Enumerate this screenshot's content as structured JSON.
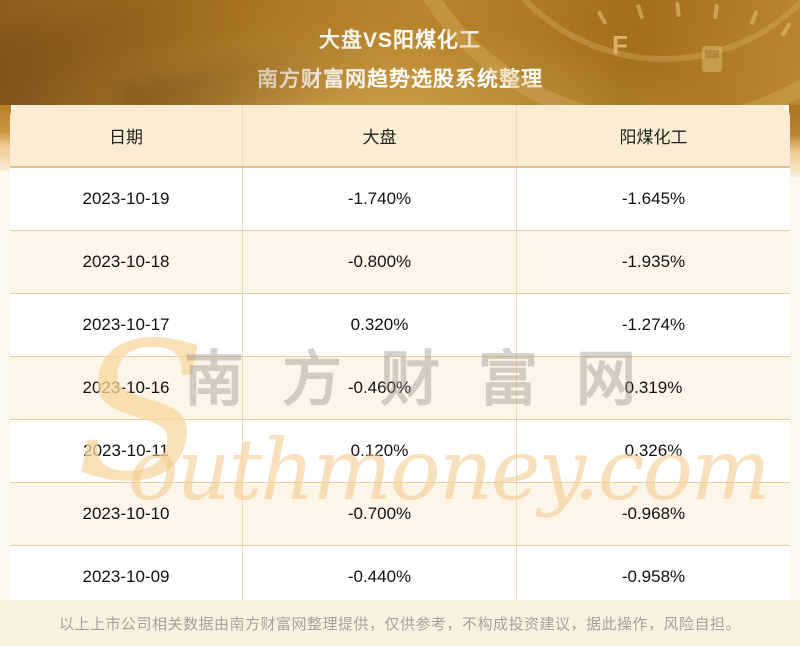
{
  "header": {
    "title": "大盘VS阳煤化工",
    "subtitle": "南方财富网趋势选股系统整理"
  },
  "background_photo": {
    "gauge_label": "F"
  },
  "table": {
    "columns": [
      "日期",
      "大盘",
      "阳煤化工"
    ],
    "rows": [
      {
        "date": "2023-10-19",
        "market": "-1.740%",
        "stock": "-1.645%"
      },
      {
        "date": "2023-10-18",
        "market": "-0.800%",
        "stock": "-1.935%"
      },
      {
        "date": "2023-10-17",
        "market": "0.320%",
        "stock": "-1.274%"
      },
      {
        "date": "2023-10-16",
        "market": "-0.460%",
        "stock": "0.319%"
      },
      {
        "date": "2023-10-11",
        "market": "0.120%",
        "stock": "0.326%"
      },
      {
        "date": "2023-10-10",
        "market": "-0.700%",
        "stock": "-0.968%"
      },
      {
        "date": "2023-10-09",
        "market": "-0.440%",
        "stock": "-0.958%"
      }
    ]
  },
  "watermark": {
    "s": "S",
    "cjk": "南方财富网",
    "domain": "outhmoney.com"
  },
  "footer": {
    "disclaimer": "以上上市公司相关数据由南方财富网整理提供，仅供参考，不构成投资建议，据此操作，风险自担。"
  },
  "colors": {
    "banner_gold": "#a9771f",
    "header_row_bg": "#fbecd3",
    "alt_row_bg": "#fdf5e7",
    "row_border": "#e9cfa0",
    "table_bottom_border": "#dcba7e",
    "page_bg": "#fdf8ee",
    "footer_bg": "#f9f1e0",
    "title_text": "#ffffff",
    "cell_text": "#111111",
    "footer_text": "#a6a29b"
  },
  "chart_data": {
    "type": "table",
    "title": "大盘VS阳煤化工",
    "subtitle": "南方财富网趋势选股系统整理",
    "columns": [
      "日期",
      "大盘",
      "阳煤化工"
    ],
    "rows": [
      [
        "2023-10-19",
        "-1.740%",
        "-1.645%"
      ],
      [
        "2023-10-18",
        "-0.800%",
        "-1.935%"
      ],
      [
        "2023-10-17",
        "0.320%",
        "-1.274%"
      ],
      [
        "2023-10-16",
        "-0.460%",
        "0.319%"
      ],
      [
        "2023-10-11",
        "0.120%",
        "0.326%"
      ],
      [
        "2023-10-10",
        "-0.700%",
        "-0.968%"
      ],
      [
        "2023-10-09",
        "-0.440%",
        "-0.958%"
      ]
    ]
  }
}
